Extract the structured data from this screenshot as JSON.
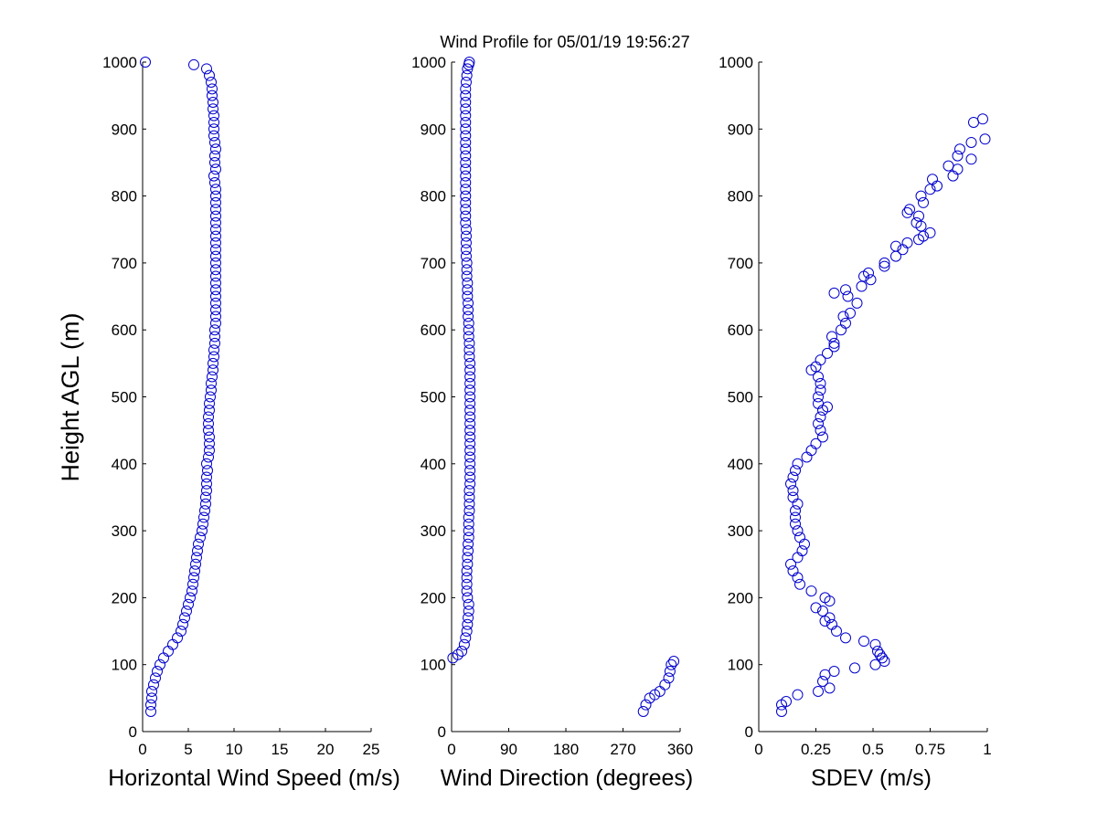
{
  "title": "Wind Profile for  05/01/19 19:56:27",
  "ylabel": "Height AGL (m)",
  "marker_color": "#0000cc",
  "chart_data": [
    {
      "type": "scatter",
      "name": "speed",
      "xlabel": "Horizontal Wind Speed (m/s)",
      "xlim": [
        0,
        25
      ],
      "xticks": [
        0,
        5,
        10,
        15,
        20,
        25
      ],
      "ylim": [
        0,
        1000
      ],
      "yticks": [
        0,
        100,
        200,
        300,
        400,
        500,
        600,
        700,
        800,
        900,
        1000
      ],
      "points": [
        [
          0.9,
          30
        ],
        [
          0.9,
          40
        ],
        [
          1.0,
          50
        ],
        [
          1.0,
          60
        ],
        [
          1.2,
          70
        ],
        [
          1.4,
          80
        ],
        [
          1.6,
          90
        ],
        [
          1.9,
          100
        ],
        [
          2.3,
          110
        ],
        [
          2.8,
          120
        ],
        [
          3.3,
          130
        ],
        [
          3.8,
          140
        ],
        [
          4.2,
          150
        ],
        [
          4.4,
          160
        ],
        [
          4.6,
          170
        ],
        [
          4.8,
          180
        ],
        [
          5.0,
          190
        ],
        [
          5.2,
          200
        ],
        [
          5.4,
          210
        ],
        [
          5.5,
          220
        ],
        [
          5.6,
          230
        ],
        [
          5.7,
          240
        ],
        [
          5.8,
          250
        ],
        [
          5.9,
          260
        ],
        [
          6.0,
          270
        ],
        [
          6.1,
          280
        ],
        [
          6.3,
          290
        ],
        [
          6.5,
          300
        ],
        [
          6.6,
          310
        ],
        [
          6.7,
          320
        ],
        [
          6.8,
          330
        ],
        [
          6.9,
          340
        ],
        [
          6.9,
          350
        ],
        [
          7.0,
          360
        ],
        [
          7.0,
          370
        ],
        [
          7.0,
          380
        ],
        [
          7.1,
          390
        ],
        [
          7.0,
          400
        ],
        [
          7.2,
          410
        ],
        [
          7.3,
          420
        ],
        [
          7.3,
          430
        ],
        [
          7.3,
          440
        ],
        [
          7.2,
          450
        ],
        [
          7.2,
          460
        ],
        [
          7.2,
          470
        ],
        [
          7.3,
          480
        ],
        [
          7.3,
          490
        ],
        [
          7.4,
          500
        ],
        [
          7.5,
          510
        ],
        [
          7.5,
          520
        ],
        [
          7.6,
          530
        ],
        [
          7.7,
          540
        ],
        [
          7.7,
          550
        ],
        [
          7.8,
          560
        ],
        [
          7.8,
          570
        ],
        [
          7.9,
          580
        ],
        [
          7.9,
          590
        ],
        [
          7.9,
          600
        ],
        [
          8.0,
          610
        ],
        [
          8.0,
          620
        ],
        [
          8.0,
          630
        ],
        [
          8.0,
          640
        ],
        [
          8.0,
          650
        ],
        [
          8.0,
          660
        ],
        [
          8.0,
          670
        ],
        [
          8.0,
          680
        ],
        [
          8.0,
          690
        ],
        [
          8.0,
          700
        ],
        [
          8.0,
          710
        ],
        [
          8.0,
          720
        ],
        [
          8.0,
          730
        ],
        [
          8.0,
          740
        ],
        [
          8.0,
          750
        ],
        [
          8.0,
          760
        ],
        [
          8.0,
          770
        ],
        [
          8.0,
          780
        ],
        [
          8.0,
          790
        ],
        [
          8.0,
          800
        ],
        [
          8.0,
          810
        ],
        [
          7.9,
          820
        ],
        [
          7.8,
          830
        ],
        [
          8.0,
          840
        ],
        [
          7.9,
          850
        ],
        [
          7.9,
          860
        ],
        [
          8.0,
          870
        ],
        [
          7.9,
          880
        ],
        [
          7.8,
          890
        ],
        [
          7.8,
          900
        ],
        [
          7.8,
          910
        ],
        [
          7.8,
          920
        ],
        [
          7.7,
          930
        ],
        [
          7.7,
          940
        ],
        [
          7.6,
          950
        ],
        [
          7.6,
          960
        ],
        [
          7.5,
          970
        ],
        [
          7.3,
          980
        ],
        [
          7.0,
          990
        ],
        [
          5.6,
          996
        ],
        [
          0.3,
          1000
        ]
      ]
    },
    {
      "type": "scatter",
      "name": "direction",
      "xlabel": "Wind Direction (degrees)",
      "xlim": [
        0,
        360
      ],
      "xticks": [
        0,
        90,
        180,
        270,
        360
      ],
      "ylim": [
        0,
        1000
      ],
      "yticks": [
        0,
        100,
        200,
        300,
        400,
        500,
        600,
        700,
        800,
        900,
        1000
      ],
      "points": [
        [
          302,
          30
        ],
        [
          306,
          40
        ],
        [
          312,
          50
        ],
        [
          320,
          55
        ],
        [
          328,
          60
        ],
        [
          336,
          70
        ],
        [
          342,
          80
        ],
        [
          344,
          90
        ],
        [
          346,
          100
        ],
        [
          350,
          105
        ],
        [
          2,
          110
        ],
        [
          10,
          115
        ],
        [
          16,
          120
        ],
        [
          20,
          130
        ],
        [
          22,
          140
        ],
        [
          24,
          150
        ],
        [
          25,
          160
        ],
        [
          26,
          170
        ],
        [
          27,
          180
        ],
        [
          27,
          190
        ],
        [
          25,
          200
        ],
        [
          24,
          210
        ],
        [
          24,
          220
        ],
        [
          24,
          230
        ],
        [
          24,
          240
        ],
        [
          25,
          250
        ],
        [
          25,
          260
        ],
        [
          26,
          270
        ],
        [
          26,
          280
        ],
        [
          27,
          290
        ],
        [
          27,
          300
        ],
        [
          27,
          310
        ],
        [
          27,
          320
        ],
        [
          28,
          330
        ],
        [
          28,
          340
        ],
        [
          28,
          350
        ],
        [
          28,
          360
        ],
        [
          29,
          370
        ],
        [
          29,
          380
        ],
        [
          29,
          390
        ],
        [
          29,
          400
        ],
        [
          29,
          410
        ],
        [
          29,
          420
        ],
        [
          29,
          430
        ],
        [
          29,
          440
        ],
        [
          29,
          450
        ],
        [
          29,
          460
        ],
        [
          29,
          470
        ],
        [
          29,
          480
        ],
        [
          29,
          490
        ],
        [
          29,
          500
        ],
        [
          29,
          510
        ],
        [
          29,
          520
        ],
        [
          29,
          530
        ],
        [
          29,
          540
        ],
        [
          29,
          550
        ],
        [
          28,
          560
        ],
        [
          28,
          570
        ],
        [
          28,
          580
        ],
        [
          27,
          590
        ],
        [
          27,
          600
        ],
        [
          27,
          610
        ],
        [
          26,
          620
        ],
        [
          26,
          630
        ],
        [
          26,
          640
        ],
        [
          25,
          650
        ],
        [
          25,
          660
        ],
        [
          25,
          670
        ],
        [
          24,
          680
        ],
        [
          24,
          690
        ],
        [
          24,
          700
        ],
        [
          23,
          710
        ],
        [
          23,
          720
        ],
        [
          23,
          730
        ],
        [
          23,
          740
        ],
        [
          23,
          750
        ],
        [
          22,
          760
        ],
        [
          22,
          770
        ],
        [
          22,
          780
        ],
        [
          22,
          790
        ],
        [
          22,
          800
        ],
        [
          22,
          810
        ],
        [
          22,
          820
        ],
        [
          22,
          830
        ],
        [
          22,
          840
        ],
        [
          22,
          850
        ],
        [
          22,
          860
        ],
        [
          22,
          870
        ],
        [
          22,
          880
        ],
        [
          22,
          890
        ],
        [
          22,
          900
        ],
        [
          22,
          910
        ],
        [
          22,
          920
        ],
        [
          22,
          930
        ],
        [
          22,
          940
        ],
        [
          22,
          950
        ],
        [
          22,
          960
        ],
        [
          23,
          970
        ],
        [
          24,
          980
        ],
        [
          25,
          990
        ],
        [
          27,
          996
        ],
        [
          28,
          1000
        ]
      ]
    },
    {
      "type": "scatter",
      "name": "sdev",
      "xlabel": "SDEV  (m/s)",
      "xlim": [
        0,
        1
      ],
      "xticks": [
        0,
        0.25,
        0.5,
        0.75,
        1
      ],
      "xtick_labels": [
        "0",
        "0.25",
        "0.5",
        "0.75",
        "1"
      ],
      "ylim": [
        0,
        1000
      ],
      "yticks": [
        0,
        100,
        200,
        300,
        400,
        500,
        600,
        700,
        800,
        900,
        1000
      ],
      "points": [
        [
          0.1,
          30
        ],
        [
          0.1,
          40
        ],
        [
          0.12,
          45
        ],
        [
          0.17,
          55
        ],
        [
          0.26,
          60
        ],
        [
          0.31,
          65
        ],
        [
          0.28,
          75
        ],
        [
          0.29,
          85
        ],
        [
          0.33,
          90
        ],
        [
          0.42,
          95
        ],
        [
          0.51,
          100
        ],
        [
          0.55,
          105
        ],
        [
          0.54,
          110
        ],
        [
          0.53,
          115
        ],
        [
          0.52,
          120
        ],
        [
          0.51,
          130
        ],
        [
          0.46,
          135
        ],
        [
          0.38,
          140
        ],
        [
          0.34,
          150
        ],
        [
          0.32,
          160
        ],
        [
          0.29,
          165
        ],
        [
          0.31,
          170
        ],
        [
          0.28,
          180
        ],
        [
          0.25,
          185
        ],
        [
          0.31,
          195
        ],
        [
          0.29,
          200
        ],
        [
          0.23,
          210
        ],
        [
          0.18,
          220
        ],
        [
          0.17,
          230
        ],
        [
          0.15,
          240
        ],
        [
          0.14,
          250
        ],
        [
          0.17,
          260
        ],
        [
          0.19,
          270
        ],
        [
          0.2,
          280
        ],
        [
          0.18,
          290
        ],
        [
          0.17,
          300
        ],
        [
          0.16,
          310
        ],
        [
          0.16,
          320
        ],
        [
          0.16,
          330
        ],
        [
          0.17,
          340
        ],
        [
          0.15,
          350
        ],
        [
          0.15,
          360
        ],
        [
          0.14,
          370
        ],
        [
          0.15,
          380
        ],
        [
          0.16,
          390
        ],
        [
          0.17,
          400
        ],
        [
          0.21,
          410
        ],
        [
          0.23,
          420
        ],
        [
          0.25,
          430
        ],
        [
          0.28,
          440
        ],
        [
          0.27,
          450
        ],
        [
          0.26,
          460
        ],
        [
          0.27,
          470
        ],
        [
          0.28,
          480
        ],
        [
          0.3,
          485
        ],
        [
          0.26,
          490
        ],
        [
          0.26,
          500
        ],
        [
          0.27,
          510
        ],
        [
          0.27,
          520
        ],
        [
          0.26,
          530
        ],
        [
          0.23,
          540
        ],
        [
          0.25,
          545
        ],
        [
          0.27,
          555
        ],
        [
          0.3,
          565
        ],
        [
          0.33,
          575
        ],
        [
          0.33,
          580
        ],
        [
          0.32,
          590
        ],
        [
          0.36,
          600
        ],
        [
          0.38,
          610
        ],
        [
          0.37,
          620
        ],
        [
          0.4,
          625
        ],
        [
          0.43,
          640
        ],
        [
          0.39,
          650
        ],
        [
          0.33,
          655
        ],
        [
          0.38,
          660
        ],
        [
          0.45,
          665
        ],
        [
          0.49,
          675
        ],
        [
          0.46,
          680
        ],
        [
          0.48,
          685
        ],
        [
          0.55,
          695
        ],
        [
          0.55,
          700
        ],
        [
          0.6,
          710
        ],
        [
          0.63,
          720
        ],
        [
          0.6,
          725
        ],
        [
          0.65,
          730
        ],
        [
          0.7,
          735
        ],
        [
          0.72,
          740
        ],
        [
          0.75,
          745
        ],
        [
          0.71,
          755
        ],
        [
          0.69,
          760
        ],
        [
          0.7,
          770
        ],
        [
          0.65,
          775
        ],
        [
          0.66,
          780
        ],
        [
          0.72,
          790
        ],
        [
          0.71,
          800
        ],
        [
          0.75,
          810
        ],
        [
          0.78,
          815
        ],
        [
          0.76,
          825
        ],
        [
          0.85,
          830
        ],
        [
          0.87,
          840
        ],
        [
          0.83,
          845
        ],
        [
          0.93,
          855
        ],
        [
          0.87,
          860
        ],
        [
          0.88,
          870
        ],
        [
          0.93,
          880
        ],
        [
          0.99,
          885
        ],
        [
          0.94,
          910
        ],
        [
          0.98,
          915
        ]
      ]
    }
  ]
}
